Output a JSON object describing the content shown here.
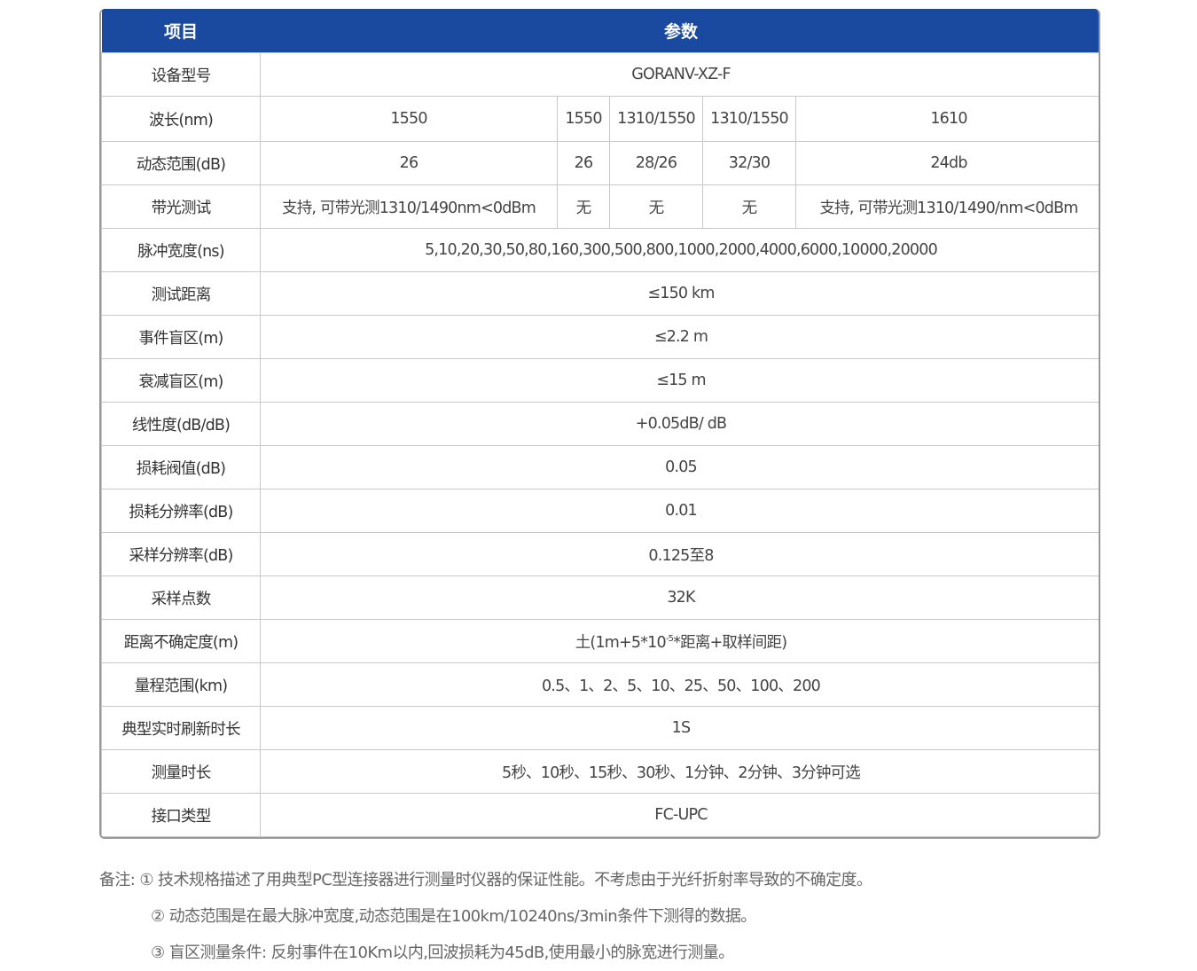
{
  "header": {
    "item": "项目",
    "param": "参数"
  },
  "rows": {
    "model": {
      "label": "设备型号",
      "value": "GORANV-XZ-F"
    },
    "wavelength": {
      "label": "波长(nm)",
      "values": [
        "1550",
        "1550",
        "1310/1550",
        "1310/1550",
        "1610"
      ]
    },
    "dynamic": {
      "label": "动态范围(dB)",
      "values": [
        "26",
        "26",
        "28/26",
        "32/30",
        "24db"
      ]
    },
    "live": {
      "label": "带光测试",
      "values": [
        "支持, 可带光测1310/1490nm<0dBm",
        "无",
        "无",
        "无",
        "支持, 可带光测1310/1490/nm<0dBm"
      ]
    },
    "pulse": {
      "label": "脉冲宽度(ns)",
      "value": "5,10,20,30,50,80,160,300,500,800,1000,2000,4000,6000,10000,20000"
    },
    "distance": {
      "label": "测试距离",
      "value": "≤150 km"
    },
    "event": {
      "label": "事件盲区(m)",
      "value": "≤2.2 m"
    },
    "atten": {
      "label": "衰减盲区(m)",
      "value": "≤15 m"
    },
    "linear": {
      "label": "线性度(dB/dB)",
      "value": "+0.05dB/ dB"
    },
    "lossth": {
      "label": "损耗阀值(dB)",
      "value": "0.05"
    },
    "lossres": {
      "label": "损耗分辨率(dB)",
      "value": "0.01"
    },
    "sampres": {
      "label": "采样分辨率(dB)",
      "value": "0.125至8"
    },
    "points": {
      "label": "采样点数",
      "value": "32K"
    },
    "uncert": {
      "label": "距离不确定度(m)",
      "pre": "土(1m+5*10",
      "sup": "-5",
      "post": "*距离+取样间距)"
    },
    "range": {
      "label": "量程范围(km)",
      "value": "0.5、1、2、5、10、25、50、100、200"
    },
    "refresh": {
      "label": "典型实时刷新时长",
      "value": "1S"
    },
    "mtime": {
      "label": "测量时长",
      "value": "5秒、10秒、15秒、30秒、1分钟、2分钟、3分钟可选"
    },
    "iface": {
      "label": "接口类型",
      "value": "FC-UPC"
    }
  },
  "notes": {
    "prefix": "备注:",
    "items": [
      "① 技术规格描述了用典型PC型连接器进行测量时仪器的保证性能。不考虑由于光纤折射率导致的不确定度。",
      "② 动态范围是在最大脉冲宽度,动态范围是在100km/10240ns/3min条件下测得的数据。",
      "③ 盲区测量条件: 反射事件在10Km以内,回波损耗为45dB,使用最小的脉宽进行测量。"
    ]
  },
  "colors": {
    "header_bg": "#1a4aa0"
  }
}
